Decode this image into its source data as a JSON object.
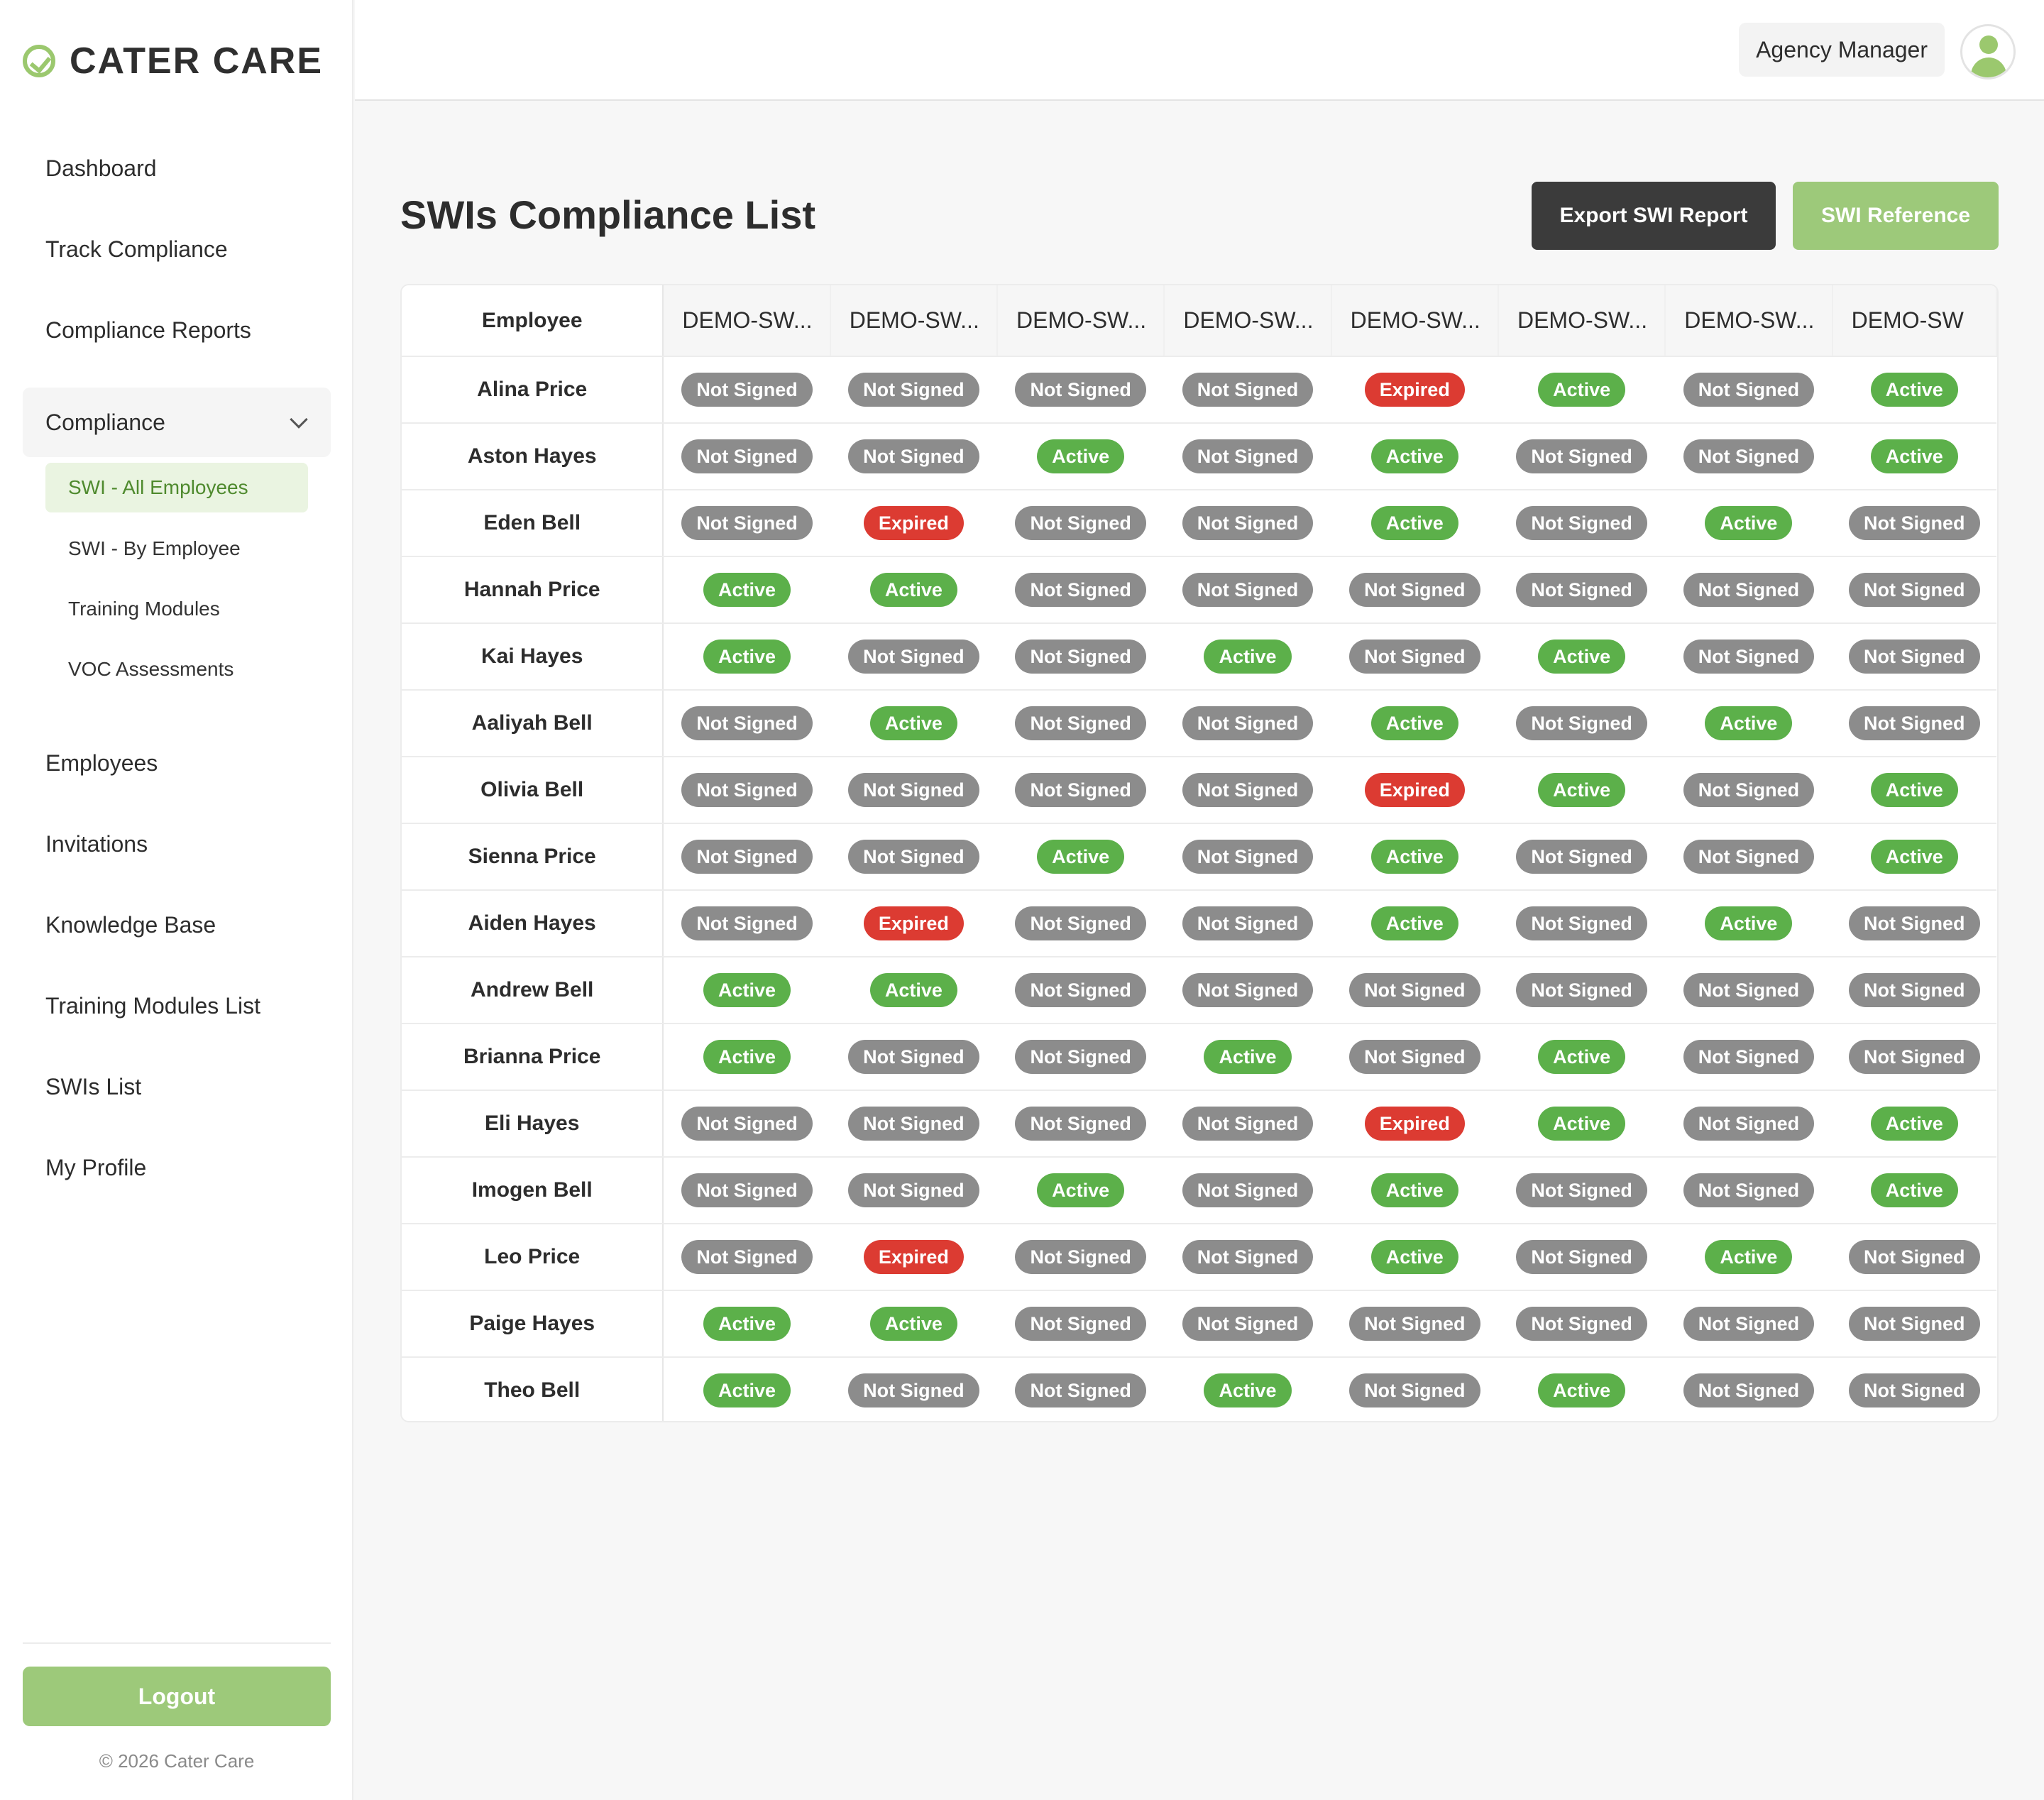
{
  "brand": {
    "name": "CATER CARE"
  },
  "nav": {
    "items_top": [
      "Dashboard",
      "Track Compliance",
      "Compliance Reports"
    ],
    "group_label": "Compliance",
    "sub_items": [
      "SWI - All Employees",
      "SWI - By Employee",
      "Training Modules",
      "VOC Assessments"
    ],
    "items_bottom": [
      "Employees",
      "Invitations",
      "Knowledge Base",
      "Training Modules List",
      "SWIs List",
      "My Profile"
    ]
  },
  "sidebar_footer": {
    "logout": "Logout",
    "copyright": "© 2026 Cater Care"
  },
  "header": {
    "role": "Agency Manager"
  },
  "page": {
    "title": "SWIs Compliance List",
    "export_button": "Export SWI Report",
    "reference_button": "SWI Reference"
  },
  "status_colors": {
    "Not Signed": "#8c8c8c",
    "Active": "#5cb04a",
    "Expired": "#dc3b32"
  },
  "table": {
    "employee_header": "Employee",
    "columns": [
      "DEMO-SW...",
      "DEMO-SW...",
      "DEMO-SW...",
      "DEMO-SW...",
      "DEMO-SW...",
      "DEMO-SW...",
      "DEMO-SW...",
      "DEMO-SW"
    ],
    "rows": [
      {
        "name": "Alina Price",
        "statuses": [
          "Not Signed",
          "Not Signed",
          "Not Signed",
          "Not Signed",
          "Expired",
          "Active",
          "Not Signed",
          "Active"
        ]
      },
      {
        "name": "Aston Hayes",
        "statuses": [
          "Not Signed",
          "Not Signed",
          "Active",
          "Not Signed",
          "Active",
          "Not Signed",
          "Not Signed",
          "Active"
        ]
      },
      {
        "name": "Eden Bell",
        "statuses": [
          "Not Signed",
          "Expired",
          "Not Signed",
          "Not Signed",
          "Active",
          "Not Signed",
          "Active",
          "Not Signed"
        ]
      },
      {
        "name": "Hannah Price",
        "statuses": [
          "Active",
          "Active",
          "Not Signed",
          "Not Signed",
          "Not Signed",
          "Not Signed",
          "Not Signed",
          "Not Signed"
        ]
      },
      {
        "name": "Kai Hayes",
        "statuses": [
          "Active",
          "Not Signed",
          "Not Signed",
          "Active",
          "Not Signed",
          "Active",
          "Not Signed",
          "Not Signed"
        ]
      },
      {
        "name": "Aaliyah Bell",
        "statuses": [
          "Not Signed",
          "Active",
          "Not Signed",
          "Not Signed",
          "Active",
          "Not Signed",
          "Active",
          "Not Signed"
        ]
      },
      {
        "name": "Olivia Bell",
        "statuses": [
          "Not Signed",
          "Not Signed",
          "Not Signed",
          "Not Signed",
          "Expired",
          "Active",
          "Not Signed",
          "Active"
        ]
      },
      {
        "name": "Sienna Price",
        "statuses": [
          "Not Signed",
          "Not Signed",
          "Active",
          "Not Signed",
          "Active",
          "Not Signed",
          "Not Signed",
          "Active"
        ]
      },
      {
        "name": "Aiden Hayes",
        "statuses": [
          "Not Signed",
          "Expired",
          "Not Signed",
          "Not Signed",
          "Active",
          "Not Signed",
          "Active",
          "Not Signed"
        ]
      },
      {
        "name": "Andrew Bell",
        "statuses": [
          "Active",
          "Active",
          "Not Signed",
          "Not Signed",
          "Not Signed",
          "Not Signed",
          "Not Signed",
          "Not Signed"
        ]
      },
      {
        "name": "Brianna Price",
        "statuses": [
          "Active",
          "Not Signed",
          "Not Signed",
          "Active",
          "Not Signed",
          "Active",
          "Not Signed",
          "Not Signed"
        ]
      },
      {
        "name": "Eli Hayes",
        "statuses": [
          "Not Signed",
          "Not Signed",
          "Not Signed",
          "Not Signed",
          "Expired",
          "Active",
          "Not Signed",
          "Active"
        ]
      },
      {
        "name": "Imogen Bell",
        "statuses": [
          "Not Signed",
          "Not Signed",
          "Active",
          "Not Signed",
          "Active",
          "Not Signed",
          "Not Signed",
          "Active"
        ]
      },
      {
        "name": "Leo Price",
        "statuses": [
          "Not Signed",
          "Expired",
          "Not Signed",
          "Not Signed",
          "Active",
          "Not Signed",
          "Active",
          "Not Signed"
        ]
      },
      {
        "name": "Paige Hayes",
        "statuses": [
          "Active",
          "Active",
          "Not Signed",
          "Not Signed",
          "Not Signed",
          "Not Signed",
          "Not Signed",
          "Not Signed"
        ]
      },
      {
        "name": "Theo Bell",
        "statuses": [
          "Active",
          "Not Signed",
          "Not Signed",
          "Active",
          "Not Signed",
          "Active",
          "Not Signed",
          "Not Signed"
        ]
      }
    ]
  }
}
